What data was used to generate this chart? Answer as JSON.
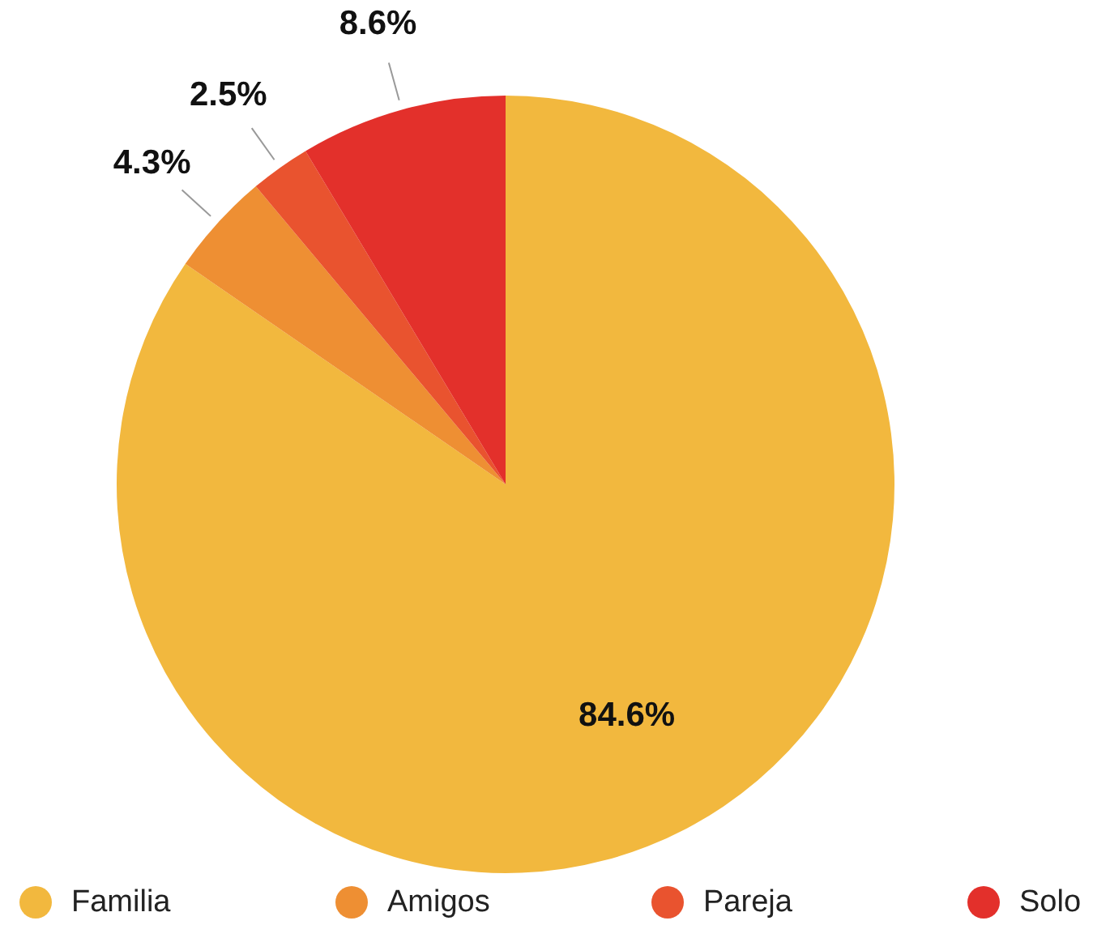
{
  "chart_data": {
    "type": "pie",
    "categories": [
      "Familia",
      "Amigos",
      "Pareja",
      "Solo"
    ],
    "values": [
      84.6,
      4.3,
      2.5,
      8.6
    ],
    "value_labels": [
      "84.6%",
      "4.3%",
      "2.5%",
      "8.6%"
    ],
    "colors": [
      "#f2b83e",
      "#ee8f33",
      "#e9532f",
      "#e3302b"
    ],
    "legend": "bottom"
  }
}
